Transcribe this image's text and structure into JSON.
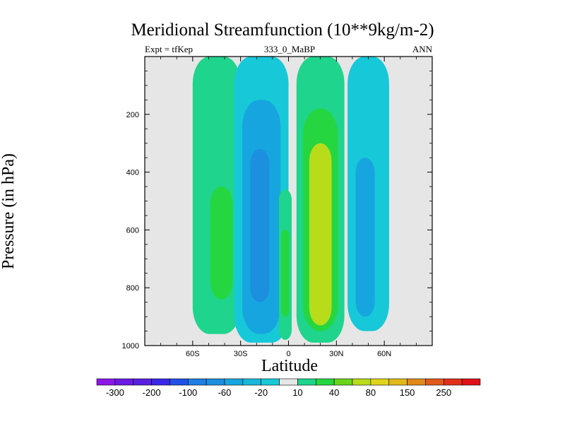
{
  "chart_data": {
    "type": "heatmap",
    "title": "Meridional Streamfunction (10**9kg/m-2)",
    "subtitle_left": "Expt = tfKep",
    "subtitle_center": "333_0_MaBP",
    "subtitle_right": "ANN",
    "xlabel": "Latitude",
    "ylabel": "Pressure (in hPa)",
    "xlim": [
      -90,
      90
    ],
    "ylim": [
      1000,
      0
    ],
    "y_reversed": true,
    "grid": false,
    "x_ticks": [
      {
        "value": -60,
        "label": "60S"
      },
      {
        "value": -30,
        "label": "30S"
      },
      {
        "value": 0,
        "label": "0"
      },
      {
        "value": 30,
        "label": "30N"
      },
      {
        "value": 60,
        "label": "60N"
      }
    ],
    "y_ticks": [
      {
        "value": 200,
        "label": "200"
      },
      {
        "value": 400,
        "label": "400"
      },
      {
        "value": 600,
        "label": "600"
      },
      {
        "value": 800,
        "label": "800"
      },
      {
        "value": 1000,
        "label": "1000"
      }
    ],
    "colorbar": {
      "levels": [
        "-300",
        "-200",
        "-100",
        "-60",
        "-20",
        "10",
        "40",
        "80",
        "150",
        "250"
      ],
      "colors": [
        "#8c18e8",
        "#6a1ae2",
        "#5a20e0",
        "#3a28e8",
        "#2050e6",
        "#1e7ee4",
        "#1c8fde",
        "#17a5e0",
        "#17b8d8",
        "#17c8d8",
        "#e6e6e6",
        "#1fd48c",
        "#26d640",
        "#6ad41a",
        "#b8dc1a",
        "#e0d41a",
        "#e0b81a",
        "#e08a1a",
        "#e05a1a",
        "#e0301a",
        "#e0101a"
      ]
    },
    "background_color": "#e6e6e6",
    "regions": [
      {
        "name": "SH Ferrel cell",
        "fill": "#1fd48c",
        "cx": -45,
        "top": 0,
        "bottom": 960,
        "half_width": 15
      },
      {
        "name": "SH Ferrel core",
        "fill": "#26d640",
        "cx": -42,
        "top": 450,
        "bottom": 840,
        "half_width": 7
      },
      {
        "name": "SH Hadley cell",
        "fill": "#17c8d8",
        "cx": -17,
        "top": 0,
        "bottom": 990,
        "half_width": 17
      },
      {
        "name": "SH Hadley mid",
        "fill": "#17a5e0",
        "cx": -17,
        "top": 150,
        "bottom": 960,
        "half_width": 12
      },
      {
        "name": "SH Hadley core",
        "fill": "#1c8fde",
        "cx": -18,
        "top": 320,
        "bottom": 850,
        "half_width": 6
      },
      {
        "name": "Equatorial cell",
        "fill": "#1fd48c",
        "cx": -2,
        "top": 460,
        "bottom": 980,
        "half_width": 4
      },
      {
        "name": "Equatorial core",
        "fill": "#26d640",
        "cx": -2,
        "top": 600,
        "bottom": 900,
        "half_width": 2.5
      },
      {
        "name": "NH Hadley cell",
        "fill": "#1fd48c",
        "cx": 20,
        "top": 0,
        "bottom": 990,
        "half_width": 15
      },
      {
        "name": "NH Hadley mid",
        "fill": "#26d640",
        "cx": 20,
        "top": 180,
        "bottom": 950,
        "half_width": 11
      },
      {
        "name": "NH Hadley core",
        "fill": "#b8dc1a",
        "cx": 20,
        "top": 300,
        "bottom": 930,
        "half_width": 7
      },
      {
        "name": "NH Ferrel cell",
        "fill": "#17c8d8",
        "cx": 50,
        "top": 0,
        "bottom": 950,
        "half_width": 13
      },
      {
        "name": "NH Ferrel core",
        "fill": "#17a5e0",
        "cx": 48,
        "top": 350,
        "bottom": 900,
        "half_width": 6
      }
    ]
  }
}
